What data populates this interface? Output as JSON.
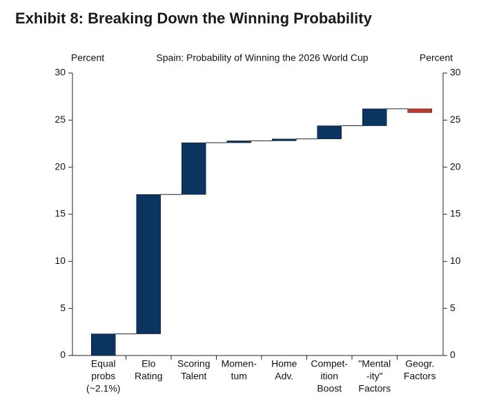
{
  "header": {
    "title": "Exhibit 8: Breaking Down the Winning Probability"
  },
  "chart_data": {
    "type": "waterfall",
    "title": "Spain: Probability of Winning the 2026 World Cup",
    "y_label": "Percent",
    "y2_label": "Percent",
    "categories": [
      [
        "Equal",
        "probs",
        "(~2.1%)"
      ],
      [
        "Elo",
        "Rating"
      ],
      [
        "Scoring",
        "Talent"
      ],
      [
        "Momen-",
        "tum"
      ],
      [
        "Home",
        "Adv."
      ],
      [
        "Compet-",
        "ition",
        "Boost"
      ],
      [
        "\"Mental",
        "-ity\"",
        "Factors"
      ],
      [
        "Geogr.",
        "Factors"
      ]
    ],
    "values": [
      2.3,
      14.8,
      5.5,
      0.2,
      0.2,
      1.4,
      1.8,
      -0.4
    ],
    "color": "#0b3460",
    "negative_color": "#c0392b",
    "ylim": [
      0,
      30
    ],
    "yticks": [
      0,
      5,
      10,
      15,
      20,
      25,
      30
    ],
    "y2lim": [
      0,
      30
    ],
    "y2ticks": [
      0,
      5,
      10,
      15,
      20,
      25,
      30
    ]
  }
}
